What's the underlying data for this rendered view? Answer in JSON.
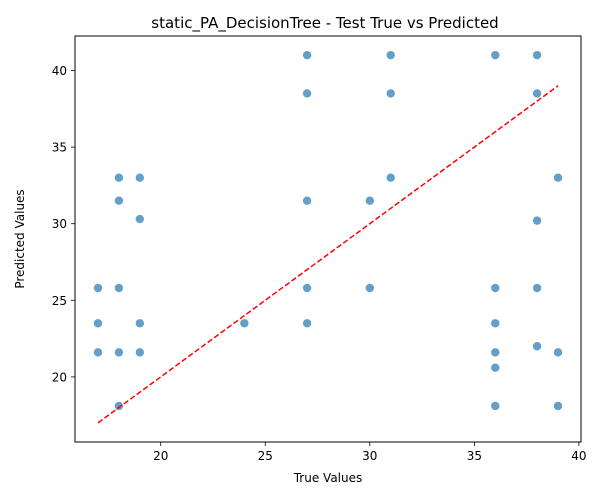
{
  "chart_data": {
    "type": "scatter",
    "title": "static_PA_DecisionTree - Test True vs Predicted",
    "xlabel": "True Values",
    "ylabel": "Predicted Values",
    "xlim": [
      15.9,
      40.1
    ],
    "ylim": [
      15.75,
      42.25
    ],
    "xticks": [
      20,
      25,
      30,
      35,
      40
    ],
    "yticks": [
      20,
      25,
      30,
      35,
      40
    ],
    "grid": false,
    "colors": {
      "points": "#1f77b4",
      "reference_line": "#ff0000"
    },
    "series": [
      {
        "values": [
          [
            17,
            25.8
          ],
          [
            17,
            23.5
          ],
          [
            17,
            21.6
          ],
          [
            18,
            33.0
          ],
          [
            18,
            31.5
          ],
          [
            18,
            25.8
          ],
          [
            18,
            21.6
          ],
          [
            18,
            18.1
          ],
          [
            19,
            33.0
          ],
          [
            19,
            30.3
          ],
          [
            19,
            23.5
          ],
          [
            19,
            21.6
          ],
          [
            24,
            23.5
          ],
          [
            27,
            41.0
          ],
          [
            27,
            38.5
          ],
          [
            27,
            31.5
          ],
          [
            27,
            25.8
          ],
          [
            27,
            23.5
          ],
          [
            30,
            31.5
          ],
          [
            30,
            25.8
          ],
          [
            31,
            41.0
          ],
          [
            31,
            38.5
          ],
          [
            31,
            33.0
          ],
          [
            36,
            41.0
          ],
          [
            36,
            25.8
          ],
          [
            36,
            23.5
          ],
          [
            36,
            21.6
          ],
          [
            36,
            20.6
          ],
          [
            36,
            18.1
          ],
          [
            38,
            41.0
          ],
          [
            38,
            38.5
          ],
          [
            38,
            30.2
          ],
          [
            38,
            25.8
          ],
          [
            38,
            22.0
          ],
          [
            39,
            33.0
          ],
          [
            39,
            21.6
          ],
          [
            39,
            18.1
          ]
        ]
      }
    ],
    "reference_line": {
      "from": [
        17,
        17
      ],
      "to": [
        39,
        39
      ],
      "style": "dashed"
    }
  }
}
